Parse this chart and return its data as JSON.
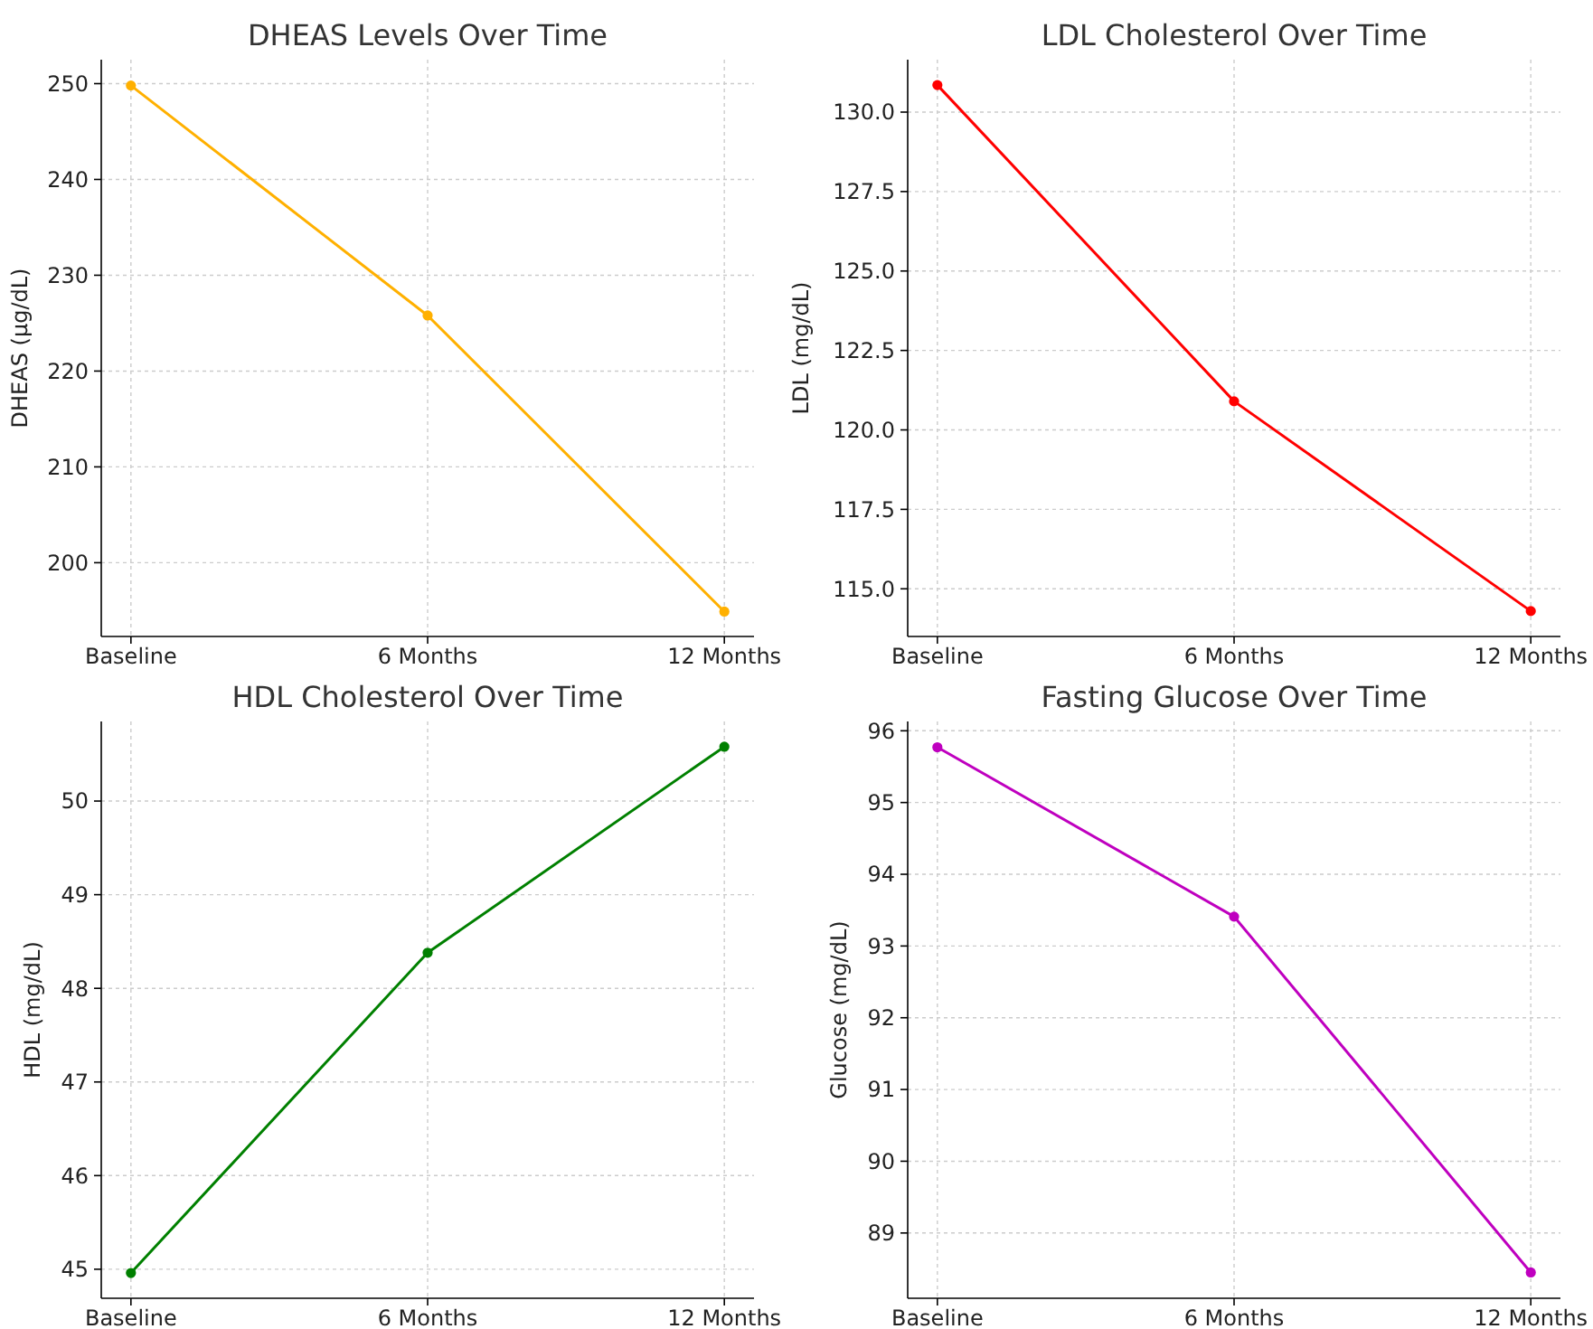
{
  "chart_data": [
    {
      "type": "line",
      "title": "DHEAS Levels Over Time",
      "ylabel": "DHEAS (µg/dL)",
      "categories": [
        "Baseline",
        "6 Months",
        "12 Months"
      ],
      "series": [
        {
          "color": "#ffb000",
          "values": [
            249.8,
            225.8,
            194.9
          ]
        }
      ],
      "ylim": [
        192.3,
        252.5
      ],
      "yticks": [
        200,
        210,
        220,
        230,
        240,
        250
      ],
      "grid": true,
      "marker": "circle"
    },
    {
      "type": "line",
      "title": "LDL Cholesterol Over Time",
      "ylabel": "LDL (mg/dL)",
      "categories": [
        "Baseline",
        "6 Months",
        "12 Months"
      ],
      "series": [
        {
          "color": "#ff0000",
          "values": [
            130.85,
            120.9,
            114.3
          ]
        }
      ],
      "ylim": [
        113.5,
        131.65
      ],
      "yticks": [
        {
          "value": 115,
          "label": "115.0"
        },
        {
          "value": 117.5,
          "label": "117.5"
        },
        {
          "value": 120,
          "label": "120.0"
        },
        {
          "value": 122.5,
          "label": "122.5"
        },
        {
          "value": 125,
          "label": "125.0"
        },
        {
          "value": 127.5,
          "label": "127.5"
        },
        {
          "value": 130,
          "label": "130.0"
        }
      ],
      "grid": true,
      "marker": "circle"
    },
    {
      "type": "line",
      "title": "HDL Cholesterol Over Time",
      "ylabel": "HDL (mg/dL)",
      "categories": [
        "Baseline",
        "6 Months",
        "12 Months"
      ],
      "series": [
        {
          "color": "#008000",
          "values": [
            44.96,
            48.38,
            50.58
          ]
        }
      ],
      "ylim": [
        44.69,
        50.85
      ],
      "yticks": [
        45,
        46,
        47,
        48,
        49,
        50
      ],
      "grid": true,
      "marker": "circle"
    },
    {
      "type": "line",
      "title": "Fasting Glucose Over Time",
      "ylabel": "Glucose (mg/dL)",
      "categories": [
        "Baseline",
        "6 Months",
        "12 Months"
      ],
      "series": [
        {
          "color": "#bf00bf",
          "values": [
            95.77,
            93.41,
            88.45
          ]
        }
      ],
      "ylim": [
        88.09,
        96.13
      ],
      "yticks": [
        89,
        90,
        91,
        92,
        93,
        94,
        95,
        96
      ],
      "grid": true,
      "marker": "circle"
    }
  ]
}
